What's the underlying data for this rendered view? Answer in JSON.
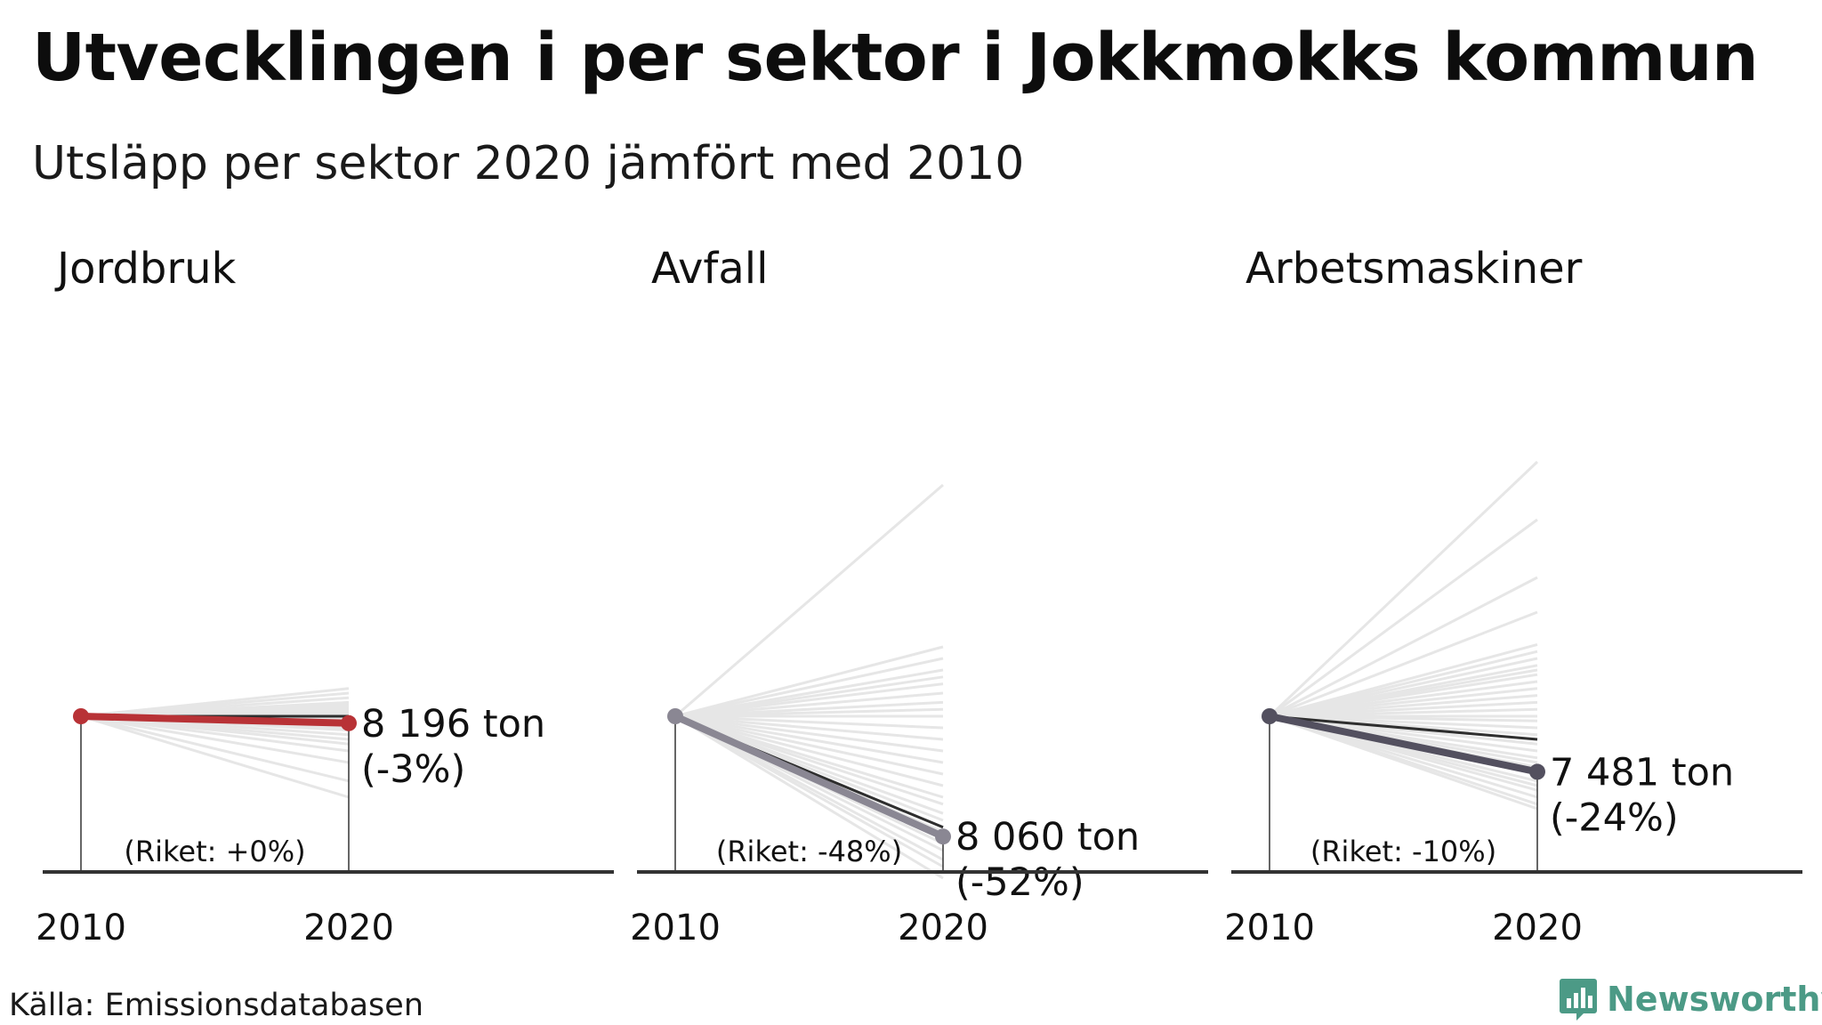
{
  "title": "Utvecklingen i per sektor i Jokkmokks kommun",
  "subtitle": "Utsläpp per sektor 2020 jämfört med 2010",
  "source": "Källa: Emissionsdatabasen",
  "brand": {
    "name": "Newsworthy",
    "icon": "newsworthy-logo-icon",
    "color": "#4c9a86"
  },
  "chart_data": [
    {
      "type": "line",
      "title": "Jordbruk",
      "x": [
        "2010",
        "2020"
      ],
      "highlight": {
        "change_pct": -3,
        "label_value": "8 196 ton",
        "label_change": "(-3%)",
        "color": "#b83236"
      },
      "national": {
        "change_pct": 0,
        "label": "(Riket: +0%)"
      },
      "other_municipalities_change_pct": [
        -35,
        -28,
        -20,
        -15,
        -12,
        -10,
        -8,
        -6,
        -5,
        -4,
        -3,
        -2,
        -1,
        0,
        1,
        2,
        3,
        4,
        5,
        6,
        8,
        10,
        12
      ]
    },
    {
      "type": "line",
      "title": "Avfall",
      "x": [
        "2010",
        "2020"
      ],
      "highlight": {
        "change_pct": -52,
        "label_value": "8 060 ton",
        "label_change": "(-52%)",
        "color": "#8a8793"
      },
      "national": {
        "change_pct": -48,
        "label": "(Riket: -48%)"
      },
      "other_municipalities_change_pct": [
        -70,
        -65,
        -62,
        -58,
        -55,
        -52,
        -50,
        -48,
        -45,
        -42,
        -38,
        -35,
        -30,
        -25,
        -20,
        -15,
        -10,
        -5,
        0,
        3,
        6,
        10,
        14,
        17,
        20,
        25,
        30,
        100
      ]
    },
    {
      "type": "line",
      "title": "Arbetsmaskiner",
      "x": [
        "2010",
        "2020"
      ],
      "highlight": {
        "change_pct": -24,
        "label_value": "7 481 ton",
        "label_change": "(-24%)",
        "color": "#53505f"
      },
      "national": {
        "change_pct": -10,
        "label": "(Riket: -10%)"
      },
      "other_municipalities_change_pct": [
        -40,
        -38,
        -35,
        -32,
        -30,
        -28,
        -25,
        -22,
        -20,
        -18,
        -15,
        -12,
        -10,
        -8,
        -5,
        -2,
        0,
        3,
        6,
        9,
        12,
        15,
        18,
        20,
        22,
        25,
        28,
        31,
        45,
        60,
        85,
        110
      ]
    }
  ]
}
